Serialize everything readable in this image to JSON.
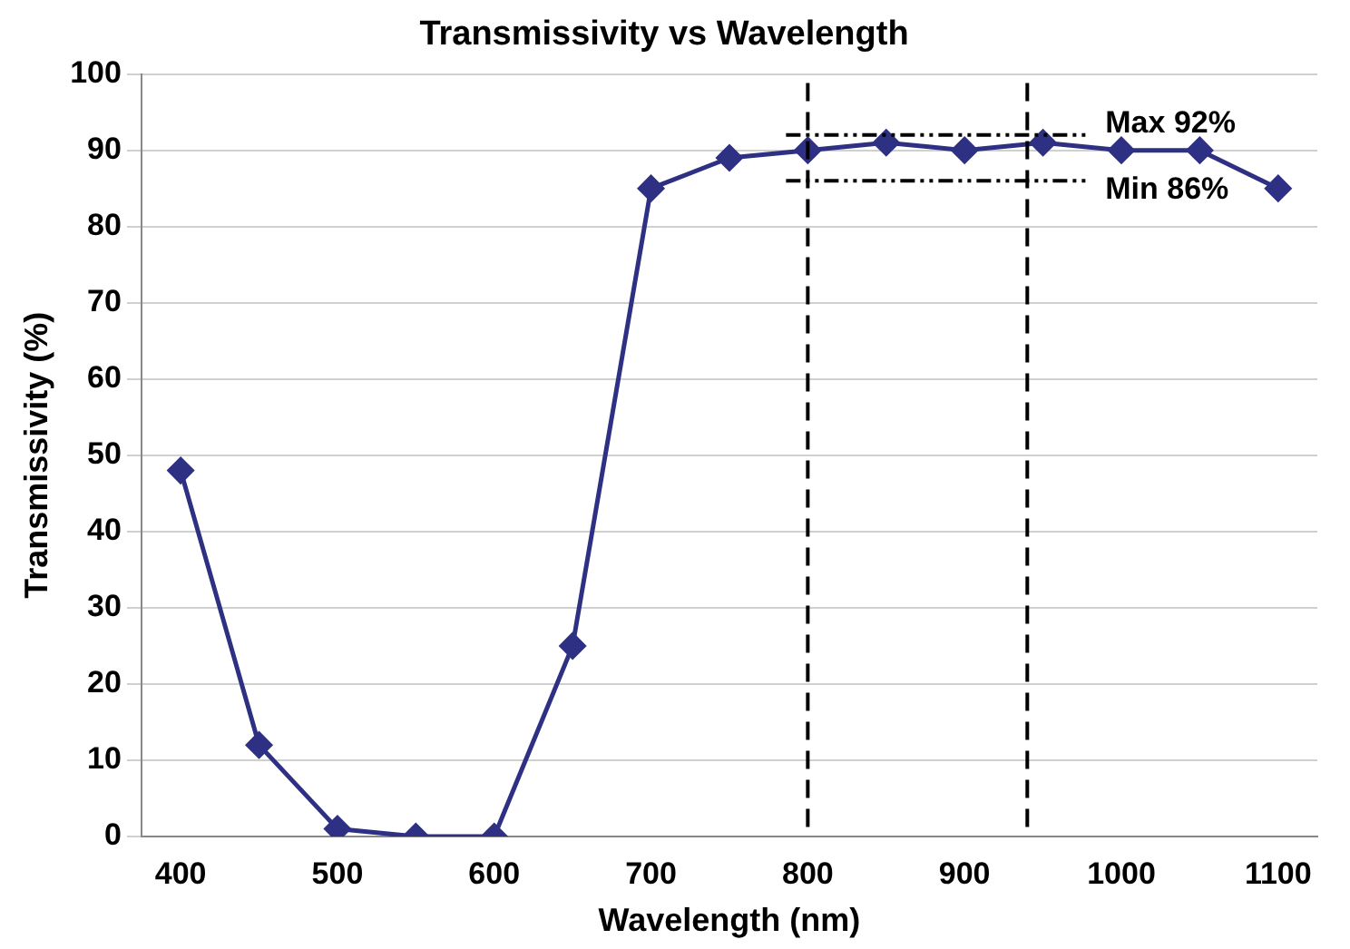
{
  "chart_data": {
    "type": "line",
    "title": "Transmissivity vs Wavelength",
    "xlabel": "Wavelength (nm)",
    "ylabel": "Transmissivity (%)",
    "x": [
      400,
      450,
      500,
      550,
      600,
      650,
      700,
      750,
      800,
      850,
      900,
      950,
      1000,
      1050,
      1100
    ],
    "series": [
      {
        "color": "#2e3183",
        "values": [
          48,
          12,
          1,
          0,
          0,
          25,
          85,
          89,
          90,
          91,
          90,
          91,
          90,
          90,
          85
        ]
      }
    ],
    "xlim": [
      375,
      1125
    ],
    "xticks": [
      400,
      500,
      600,
      700,
      800,
      900,
      1000,
      1100
    ],
    "ylim": [
      0,
      100
    ],
    "yticks": [
      0,
      10,
      20,
      30,
      40,
      50,
      60,
      70,
      80,
      90,
      100
    ],
    "grid": "y",
    "legend": false,
    "marker": "diamond",
    "line_style": "solid",
    "ref_lines": [
      {
        "axis": "x",
        "value": 800,
        "line_style": "dashed",
        "color": "#000000"
      },
      {
        "axis": "x",
        "value": 940,
        "line_style": "dashed",
        "color": "#000000"
      },
      {
        "axis": "y",
        "value": 92,
        "label": "Max 92%",
        "line_style": "dashdot",
        "color": "#000000"
      },
      {
        "axis": "y",
        "value": 86,
        "label": "Min 86%",
        "line_style": "dashdot",
        "color": "#000000"
      }
    ]
  }
}
